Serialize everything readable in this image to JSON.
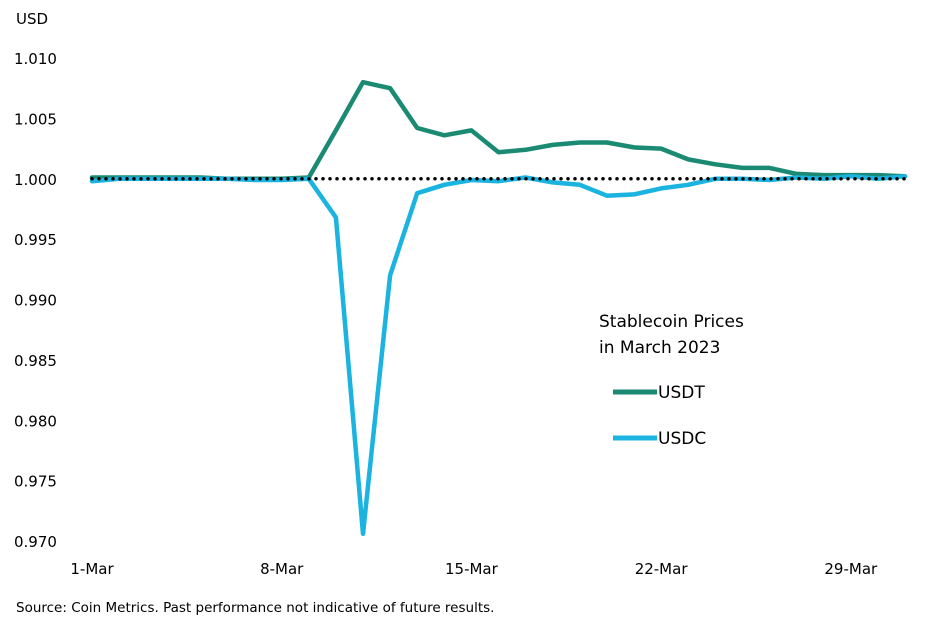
{
  "chart_data": {
    "type": "line",
    "title": "Stablecoin Prices in March 2023",
    "title_lines": [
      "Stablecoin Prices",
      "in March 2023"
    ],
    "ylabel": "USD",
    "xlabel": "",
    "ylim": [
      0.97,
      1.01
    ],
    "yticks": [
      "1.010",
      "1.005",
      "1.000",
      "0.995",
      "0.990",
      "0.985",
      "0.980",
      "0.975",
      "0.970"
    ],
    "ytick_values": [
      1.01,
      1.005,
      1.0,
      0.995,
      0.99,
      0.985,
      0.98,
      0.975,
      0.97
    ],
    "xlim": [
      1,
      31
    ],
    "xticks": [
      "1-Mar",
      "8-Mar",
      "15-Mar",
      "22-Mar",
      "29-Mar"
    ],
    "xtick_values": [
      1,
      8,
      15,
      22,
      29
    ],
    "x": [
      1,
      2,
      3,
      4,
      5,
      6,
      7,
      8,
      9,
      10,
      11,
      12,
      13,
      14,
      15,
      16,
      17,
      18,
      19,
      20,
      21,
      22,
      23,
      24,
      25,
      26,
      27,
      28,
      29,
      30,
      31
    ],
    "reference_line": {
      "y": 1.0,
      "style": "dotted",
      "color": "#000000"
    },
    "series": [
      {
        "name": "USDT",
        "color": "#1a8a72",
        "values": [
          1.0001,
          1.0001,
          1.0001,
          1.0001,
          1.0001,
          1.0,
          1.0,
          1.0,
          1.0001,
          1.004,
          1.008,
          1.0075,
          1.0042,
          1.0036,
          1.004,
          1.0022,
          1.0024,
          1.0028,
          1.003,
          1.003,
          1.0026,
          1.0025,
          1.0016,
          1.0012,
          1.0009,
          1.0009,
          1.0004,
          1.0003,
          1.0003,
          1.0003,
          1.0002
        ]
      },
      {
        "name": "USDC",
        "color": "#1bb3e0",
        "values": [
          0.9998,
          1.0,
          1.0,
          1.0,
          1.0,
          1.0,
          0.9999,
          0.9999,
          1.0,
          0.9968,
          0.9706,
          0.992,
          0.9988,
          0.9995,
          0.9999,
          0.9998,
          1.0001,
          0.9997,
          0.9995,
          0.9986,
          0.9987,
          0.9992,
          0.9995,
          1.0,
          1.0,
          0.9999,
          1.0001,
          1.0,
          1.0002,
          1.0,
          1.0002
        ]
      }
    ],
    "legend": [
      "USDT",
      "USDC"
    ],
    "legend_position": "right-middle",
    "grid": false
  },
  "footer": {
    "source": "Source: Coin Metrics. Past performance not indicative of future results."
  }
}
